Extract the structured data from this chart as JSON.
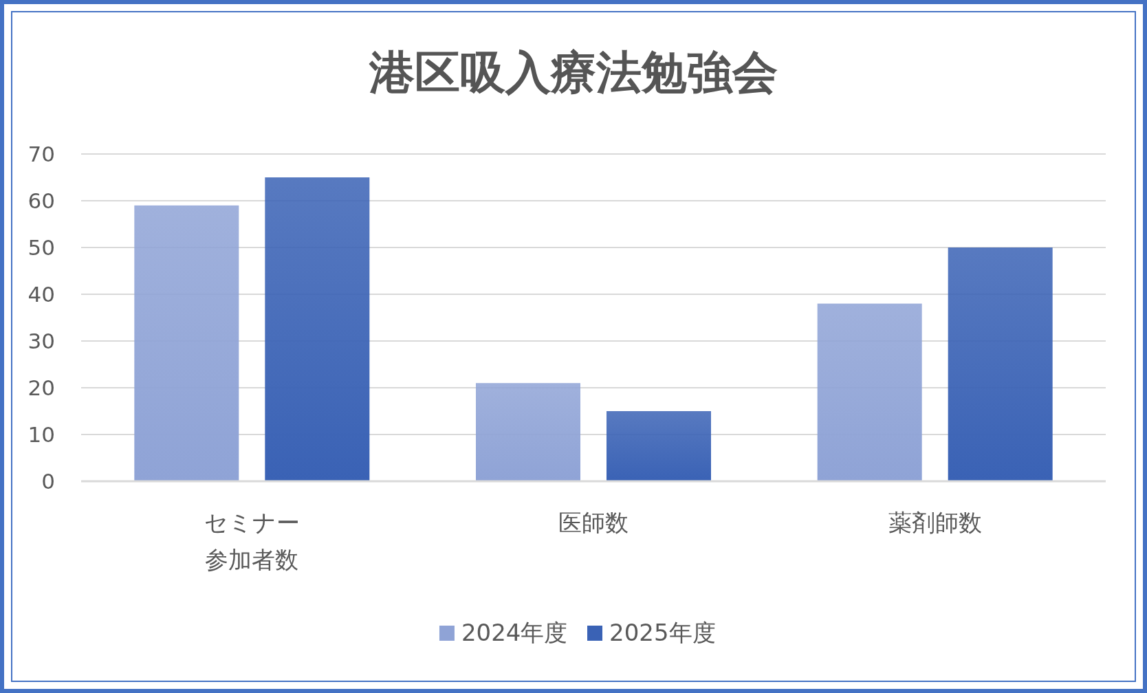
{
  "chart_data": {
    "type": "bar",
    "title": "港区吸入療法勉強会",
    "categories": [
      "セミナー参加者数",
      "医師数",
      "薬剤師数"
    ],
    "series": [
      {
        "name": "2024年度",
        "color": "#8fa3d6",
        "values": [
          59,
          21,
          38
        ]
      },
      {
        "name": "2025年度",
        "color": "#3a62b5",
        "values": [
          65,
          15,
          50
        ]
      }
    ],
    "ylim": [
      0,
      70
    ],
    "yticks": [
      0,
      10,
      20,
      30,
      40,
      50,
      60,
      70
    ],
    "grid": "y",
    "legend": "bottom"
  }
}
